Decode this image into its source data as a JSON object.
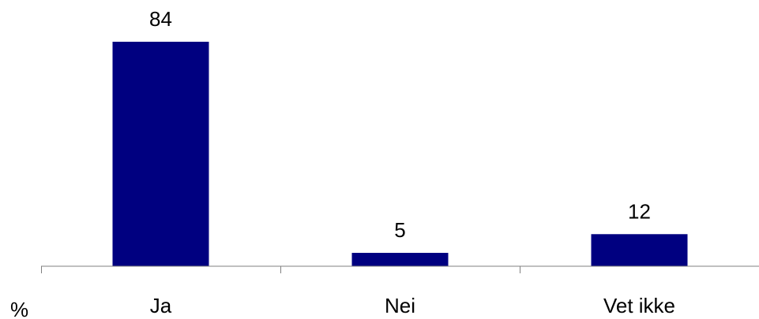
{
  "chart_data": {
    "type": "bar",
    "categories": [
      "Ja",
      "Nei",
      "Vet ikke"
    ],
    "values": [
      84,
      5,
      12
    ],
    "data_labels": [
      "84",
      "5",
      "12"
    ],
    "unit_label": "%",
    "ylim": [
      0,
      84
    ],
    "grid": false,
    "legend": "none",
    "bar_color": "#000080",
    "axis_color": "#808080"
  }
}
